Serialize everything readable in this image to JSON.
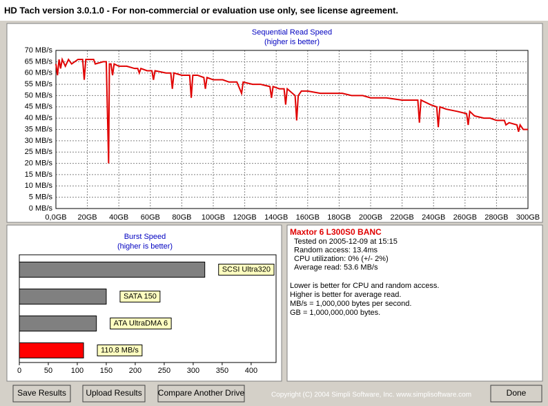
{
  "window": {
    "title": "HD Tach version 3.0.1.0  - For non-commercial or evaluation use only, see license agreement."
  },
  "chart_data": [
    {
      "type": "line",
      "title": "Sequential Read Speed",
      "subtitle": "(higher is better)",
      "grid": true,
      "xlim": [
        0,
        300
      ],
      "ylim": [
        0,
        70
      ],
      "xticks": [
        {
          "value": 0,
          "label": "0,0GB"
        },
        {
          "value": 20,
          "label": "20GB"
        },
        {
          "value": 40,
          "label": "40GB"
        },
        {
          "value": 60,
          "label": "60GB"
        },
        {
          "value": 80,
          "label": "80GB"
        },
        {
          "value": 100,
          "label": "100GB"
        },
        {
          "value": 120,
          "label": "120GB"
        },
        {
          "value": 140,
          "label": "140GB"
        },
        {
          "value": 160,
          "label": "160GB"
        },
        {
          "value": 180,
          "label": "180GB"
        },
        {
          "value": 200,
          "label": "200GB"
        },
        {
          "value": 220,
          "label": "220GB"
        },
        {
          "value": 240,
          "label": "240GB"
        },
        {
          "value": 260,
          "label": "260GB"
        },
        {
          "value": 280,
          "label": "280GB"
        },
        {
          "value": 300,
          "label": "300GB"
        }
      ],
      "yticks": [
        {
          "value": 0,
          "label": "0 MB/s"
        },
        {
          "value": 5,
          "label": "5 MB/s"
        },
        {
          "value": 10,
          "label": "10 MB/s"
        },
        {
          "value": 15,
          "label": "15 MB/s"
        },
        {
          "value": 20,
          "label": "20 MB/s"
        },
        {
          "value": 25,
          "label": "25 MB/s"
        },
        {
          "value": 30,
          "label": "30 MB/s"
        },
        {
          "value": 35,
          "label": "35 MB/s"
        },
        {
          "value": 40,
          "label": "40 MB/s"
        },
        {
          "value": 45,
          "label": "45 MB/s"
        },
        {
          "value": 50,
          "label": "50 MB/s"
        },
        {
          "value": 55,
          "label": "55 MB/s"
        },
        {
          "value": 60,
          "label": "60 MB/s"
        },
        {
          "value": 65,
          "label": "65 MB/s"
        },
        {
          "value": 70,
          "label": "70 MB/s"
        }
      ],
      "x": [
        0,
        1,
        2,
        3,
        4,
        6,
        8,
        10,
        14,
        17,
        18,
        19,
        24,
        25,
        30,
        32,
        33,
        33.5,
        34,
        35,
        36,
        37,
        40,
        45,
        50,
        52,
        53,
        54,
        58,
        61,
        62,
        63,
        70,
        73,
        74,
        75,
        80,
        85,
        86,
        87,
        90,
        94,
        95,
        96,
        100,
        106,
        110,
        115,
        118,
        119,
        125,
        130,
        136,
        137,
        138,
        142,
        145,
        146,
        147,
        152,
        153,
        154,
        156,
        160,
        168,
        175,
        182,
        188,
        195,
        200,
        210,
        220,
        230,
        231,
        232,
        238,
        242,
        243,
        244,
        248,
        255,
        261,
        262,
        263,
        266,
        272,
        276,
        280,
        285,
        286,
        288,
        293,
        294,
        295,
        297,
        300
      ],
      "series": [
        {
          "color": "#e00000",
          "values": [
            64,
            59,
            66,
            62,
            66,
            63,
            66,
            64,
            66,
            66,
            57,
            66,
            66,
            64,
            65,
            65,
            35,
            20,
            64,
            64,
            59,
            64,
            63,
            63,
            62,
            62,
            60,
            62,
            61,
            61,
            57,
            61,
            60,
            60,
            53,
            60,
            59,
            59,
            49,
            59,
            59,
            58,
            53,
            58,
            57,
            57,
            56,
            56,
            51,
            56,
            55,
            55,
            54,
            49,
            54,
            53,
            53,
            46,
            53,
            50,
            39,
            50,
            52,
            52,
            51,
            51,
            51,
            50,
            50,
            49,
            49,
            48,
            48,
            38,
            48,
            46,
            45,
            36,
            45,
            44,
            43,
            42,
            37,
            43,
            41,
            40,
            40,
            39,
            39,
            37,
            38,
            37,
            34,
            37,
            35,
            35
          ]
        }
      ]
    },
    {
      "type": "bar",
      "orientation": "horizontal",
      "title": "Burst Speed",
      "subtitle": "(higher is better)",
      "categories": [
        "SCSI Ultra320",
        "SATA 150",
        "ATA UltraDMA 6",
        null
      ],
      "values": [
        320,
        150,
        133,
        110.8
      ],
      "value_labels": [
        null,
        null,
        null,
        "110.8 MB/s"
      ],
      "colors": [
        "#808080",
        "#808080",
        "#808080",
        "#ff0000"
      ],
      "xlim": [
        0,
        443
      ],
      "xticks": [
        0,
        50,
        100,
        150,
        200,
        250,
        300,
        350,
        400
      ]
    }
  ],
  "info": {
    "heading": "Maxtor 6 L300S0 BANC",
    "lines": [
      "Tested on 2005-12-09 at 15:15",
      "Random access: 13.4ms",
      "CPU utilization: 0% (+/- 2%)",
      "Average read: 53.6 MB/s"
    ],
    "notes": [
      "Lower is better for CPU and random access.",
      "Higher is better for average read.",
      "MB/s = 1,000,000 bytes per second.",
      "GB = 1,000,000,000 bytes."
    ]
  },
  "buttons": [
    "Save Results",
    "Upload Results",
    "Compare Another Drive",
    "Done"
  ],
  "copyright": "Copyright (C) 2004 Simpli Software, Inc. www.simplisoftware.com"
}
